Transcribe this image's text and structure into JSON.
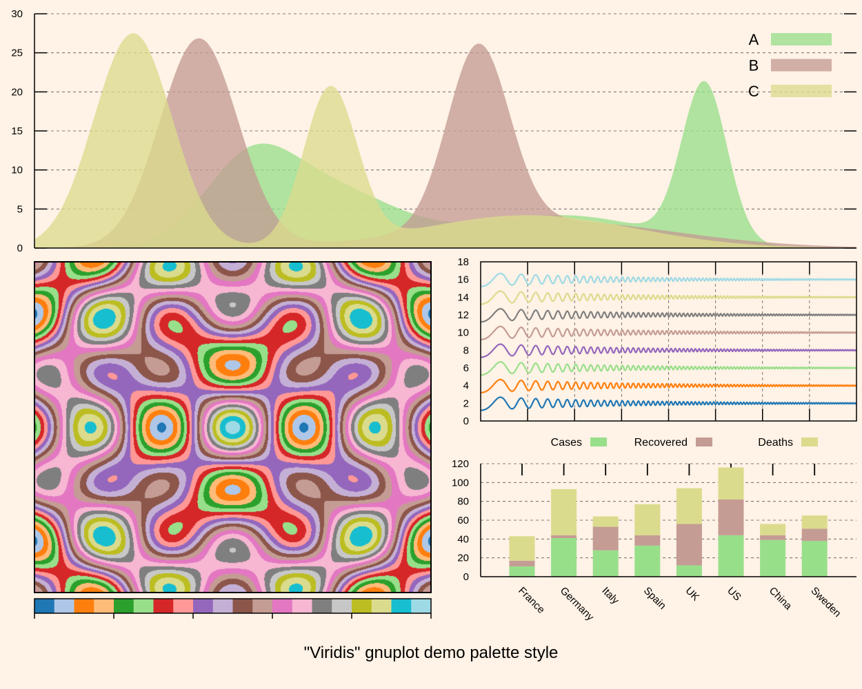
{
  "title": "\"Viridis\" gnuplot demo palette style",
  "colors": {
    "background": "#fff2e6",
    "palette": [
      "#1f77b4",
      "#aec7e8",
      "#ff7f0e",
      "#ffbb78",
      "#2ca02c",
      "#98df8a",
      "#d62728",
      "#ff9896",
      "#9467bd",
      "#c5b0d5",
      "#8c564b",
      "#c49c94",
      "#e377c2",
      "#f7b6d2",
      "#7f7f7f",
      "#c7c7c7",
      "#bcbd22",
      "#dbdb8d",
      "#17becf",
      "#9edae5"
    ]
  },
  "chart_data": [
    {
      "type": "area",
      "name": "density-chart",
      "xlim": [
        0,
        20
      ],
      "ylim": [
        0,
        30
      ],
      "yticks": [
        "0",
        "5",
        "10",
        "15",
        "20",
        "25",
        "30"
      ],
      "grid": true,
      "legend": "top-right",
      "series": [
        {
          "name": "A",
          "color": "#98df8a",
          "components": [
            {
              "mu": 5.2,
              "sigma": 1.1,
              "amp": 9.6
            },
            {
              "mu": 7.2,
              "sigma": 1.6,
              "amp": 7.2
            },
            {
              "mu": 12.8,
              "sigma": 2.2,
              "amp": 4.2
            },
            {
              "mu": 16.3,
              "sigma": 0.55,
              "amp": 20.2
            }
          ]
        },
        {
          "name": "B",
          "color": "#c49c94",
          "components": [
            {
              "mu": 4.0,
              "sigma": 0.95,
              "amp": 26.8
            },
            {
              "mu": 10.8,
              "sigma": 0.75,
              "amp": 23.2
            },
            {
              "mu": 12.5,
              "sigma": 3.0,
              "amp": 3.5
            }
          ]
        },
        {
          "name": "C",
          "color": "#dbdb8d",
          "components": [
            {
              "mu": 2.4,
              "sigma": 0.95,
              "amp": 27.5
            },
            {
              "mu": 7.2,
              "sigma": 0.65,
              "amp": 20.0
            },
            {
              "mu": 12.0,
              "sigma": 2.6,
              "amp": 4.2
            }
          ]
        }
      ]
    },
    {
      "type": "heatmap",
      "name": "interference-pattern",
      "palette_levels": 20,
      "colorbar": true
    },
    {
      "type": "line",
      "name": "damped-oscillations",
      "xlim": [
        0,
        8
      ],
      "ylim": [
        0,
        18
      ],
      "yticks": [
        "0",
        "2",
        "4",
        "6",
        "8",
        "10",
        "12",
        "14",
        "16",
        "18"
      ],
      "series": [
        {
          "offset": 2,
          "color": "#1f77b4"
        },
        {
          "offset": 4,
          "color": "#ff7f0e"
        },
        {
          "offset": 6,
          "color": "#98df8a"
        },
        {
          "offset": 8,
          "color": "#9467bd"
        },
        {
          "offset": 10,
          "color": "#c49c94"
        },
        {
          "offset": 12,
          "color": "#7f7f7f"
        },
        {
          "offset": 14,
          "color": "#dbdb8d"
        },
        {
          "offset": 16,
          "color": "#9edae5"
        }
      ]
    },
    {
      "type": "bar",
      "name": "stacked-bars",
      "categories": [
        "France",
        "Germany",
        "Italy",
        "Spain",
        "UK",
        "US",
        "China",
        "Sweden"
      ],
      "ylim": [
        0,
        120
      ],
      "yticks": [
        "0",
        "20",
        "40",
        "60",
        "80",
        "100",
        "120"
      ],
      "legend": "top",
      "series": [
        {
          "name": "Cases",
          "color": "#98df8a",
          "values": [
            11,
            41,
            28,
            33,
            12,
            44,
            39,
            38
          ]
        },
        {
          "name": "Recovered",
          "color": "#c49c94",
          "values": [
            6,
            3,
            25,
            11,
            44,
            38,
            5,
            13
          ]
        },
        {
          "name": "Deaths",
          "color": "#dbdb8d",
          "values": [
            26,
            49,
            11,
            33,
            38,
            34,
            12,
            14
          ]
        }
      ]
    }
  ]
}
